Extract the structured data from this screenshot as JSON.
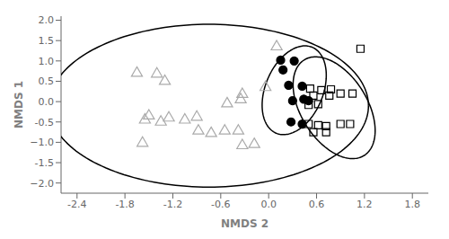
{
  "chart_data": {
    "type": "scatter",
    "xlabel": "NMDS 2",
    "ylabel": "NMDS 1",
    "xlim": [
      -2.6,
      2.0
    ],
    "ylim": [
      -2.25,
      2.1
    ],
    "xticks": [
      -2.4,
      -1.8,
      -1.2,
      -0.6,
      {
        "value": 0.0,
        "label": "0.0"
      },
      0.6,
      1.2,
      1.8
    ],
    "yticks": [
      {
        "value": -2.0,
        "label": "−2.0"
      },
      -1.5,
      {
        "value": -1.0,
        "label": "−1.0"
      },
      -0.5,
      {
        "value": 0.0,
        "label": "0.0"
      },
      0.5,
      {
        "value": 1.0,
        "label": "1.0"
      },
      1.5,
      {
        "value": 2.0,
        "label": "2.0"
      }
    ],
    "grid": false,
    "series": [
      {
        "color": "#aaaaaa",
        "marker": "triangle-open",
        "values": [
          [
            -1.65,
            0.7
          ],
          [
            -1.4,
            0.68
          ],
          [
            -1.3,
            0.5
          ],
          [
            -1.55,
            -0.45
          ],
          [
            -1.35,
            -0.5
          ],
          [
            -1.5,
            -0.35
          ],
          [
            -1.25,
            -0.4
          ],
          [
            -1.05,
            -0.45
          ],
          [
            -0.9,
            -0.38
          ],
          [
            -0.88,
            -0.72
          ],
          [
            -0.72,
            -0.78
          ],
          [
            -0.55,
            -0.72
          ],
          [
            -0.38,
            -0.72
          ],
          [
            -0.52,
            -0.05
          ],
          [
            -0.33,
            0.18
          ],
          [
            -0.33,
            -1.08
          ],
          [
            -0.18,
            -1.05
          ],
          [
            -1.58,
            -1.02
          ],
          [
            0.1,
            1.35
          ],
          [
            -0.04,
            0.35
          ],
          [
            -0.35,
            0.05
          ]
        ]
      },
      {
        "color": "#000000",
        "marker": "circle",
        "values": [
          [
            0.15,
            1.02
          ],
          [
            0.32,
            1.0
          ],
          [
            0.18,
            0.78
          ],
          [
            0.25,
            0.4
          ],
          [
            0.42,
            0.38
          ],
          [
            0.3,
            0.02
          ],
          [
            0.44,
            0.06
          ],
          [
            0.5,
            0.02
          ],
          [
            0.28,
            -0.5
          ],
          [
            0.42,
            -0.55
          ]
        ]
      },
      {
        "color": "#000000",
        "marker": "square-open",
        "values": [
          [
            0.52,
            0.32
          ],
          [
            0.66,
            0.28
          ],
          [
            0.78,
            0.3
          ],
          [
            0.56,
            0.15
          ],
          [
            0.76,
            0.15
          ],
          [
            0.5,
            -0.08
          ],
          [
            0.62,
            -0.06
          ],
          [
            0.5,
            -0.55
          ],
          [
            0.62,
            -0.58
          ],
          [
            0.72,
            -0.6
          ],
          [
            0.56,
            -0.75
          ],
          [
            0.72,
            -0.75
          ],
          [
            0.9,
            -0.55
          ],
          [
            1.02,
            -0.55
          ],
          [
            1.15,
            1.3
          ],
          [
            0.9,
            0.2
          ],
          [
            1.05,
            0.2
          ]
        ]
      }
    ],
    "ellipses": [
      {
        "cx": -0.75,
        "cy": -0.1,
        "width": 4.0,
        "height": 4.0,
        "angle": 0,
        "color": "#000000"
      },
      {
        "cx": 0.32,
        "cy": 0.28,
        "width": 0.75,
        "height": 2.2,
        "angle": -8,
        "color": "#000000"
      },
      {
        "cx": 0.82,
        "cy": -0.15,
        "width": 0.9,
        "height": 2.55,
        "angle": 12,
        "color": "#000000"
      }
    ]
  }
}
